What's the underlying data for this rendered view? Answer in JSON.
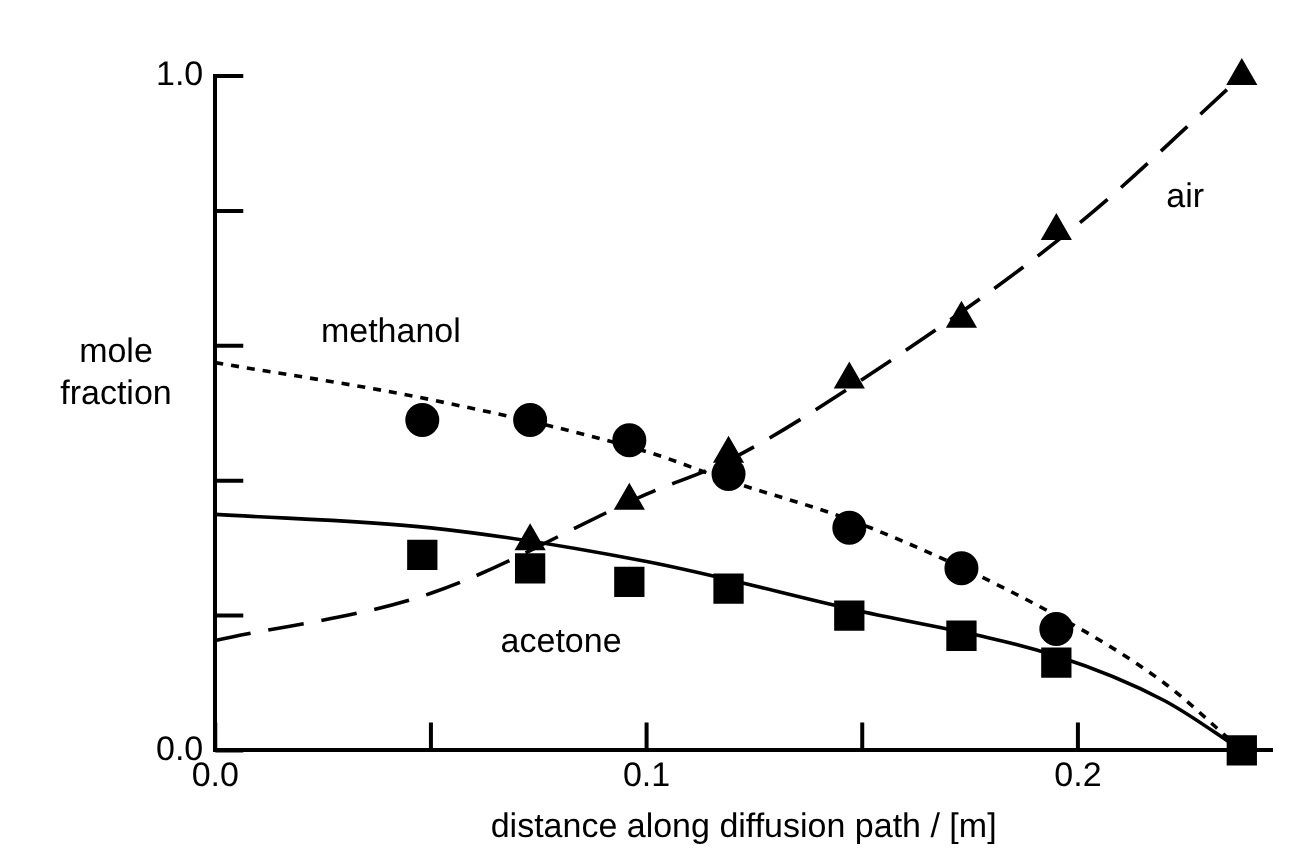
{
  "chart_data": {
    "type": "scatter",
    "xlabel": "distance along diffusion path / [m]",
    "ylabel": "mole fraction",
    "xlim": [
      0,
      0.245
    ],
    "ylim": [
      0,
      1
    ],
    "xticks": [
      {
        "value": 0,
        "label": "0.0"
      },
      {
        "value": 0.05,
        "label": null
      },
      {
        "value": 0.1,
        "label": "0.1"
      },
      {
        "value": 0.15,
        "label": null
      },
      {
        "value": 0.2,
        "label": "0.2"
      }
    ],
    "yticks": [
      {
        "value": 0,
        "label": "0.0"
      },
      {
        "value": 0.2,
        "label": null
      },
      {
        "value": 0.4,
        "label": null
      },
      {
        "value": 0.6,
        "label": null
      },
      {
        "value": 0.8,
        "label": null
      },
      {
        "value": 1,
        "label": "1.0"
      }
    ],
    "grid": false,
    "legend": false,
    "series": [
      {
        "type": "scatter",
        "marker": "circle",
        "color": "#000000",
        "x": [
          0.048,
          0.073,
          0.096,
          0.119,
          0.147,
          0.173,
          0.195
        ],
        "values": [
          0.49,
          0.49,
          0.46,
          0.41,
          0.33,
          0.27,
          0.18
        ]
      },
      {
        "type": "scatter",
        "marker": "triangle",
        "color": "#000000",
        "x": [
          0.073,
          0.096,
          0.119,
          0.147,
          0.173,
          0.195,
          0.238
        ],
        "values": [
          0.31,
          0.37,
          0.44,
          0.55,
          0.64,
          0.77,
          1.0
        ]
      },
      {
        "type": "scatter",
        "marker": "square",
        "color": "#000000",
        "x": [
          0.048,
          0.073,
          0.096,
          0.119,
          0.147,
          0.173,
          0.195,
          0.238
        ],
        "values": [
          0.29,
          0.27,
          0.25,
          0.24,
          0.2,
          0.17,
          0.13,
          0.0
        ]
      },
      {
        "type": "line",
        "marker": "none",
        "line_style": "dotted",
        "color": "#000000",
        "x": [
          0,
          0.05,
          0.1,
          0.119,
          0.15,
          0.195,
          0.22,
          0.238
        ],
        "values": [
          0.575,
          0.52,
          0.443,
          0.4,
          0.335,
          0.2,
          0.1,
          0.0
        ]
      },
      {
        "type": "line",
        "marker": "none",
        "line_style": "solid",
        "color": "#000000",
        "x": [
          0,
          0.05,
          0.1,
          0.147,
          0.195,
          0.22,
          0.238
        ],
        "values": [
          0.35,
          0.33,
          0.28,
          0.21,
          0.14,
          0.074,
          0.0
        ]
      },
      {
        "type": "line",
        "marker": "none",
        "line_style": "dashed",
        "color": "#000000",
        "x": [
          0,
          0.05,
          0.1,
          0.119,
          0.15,
          0.2,
          0.238
        ],
        "values": [
          0.163,
          0.233,
          0.38,
          0.43,
          0.55,
          0.78,
          1.0
        ]
      }
    ],
    "annotations": [
      "methanol",
      "air",
      "acetone"
    ]
  }
}
